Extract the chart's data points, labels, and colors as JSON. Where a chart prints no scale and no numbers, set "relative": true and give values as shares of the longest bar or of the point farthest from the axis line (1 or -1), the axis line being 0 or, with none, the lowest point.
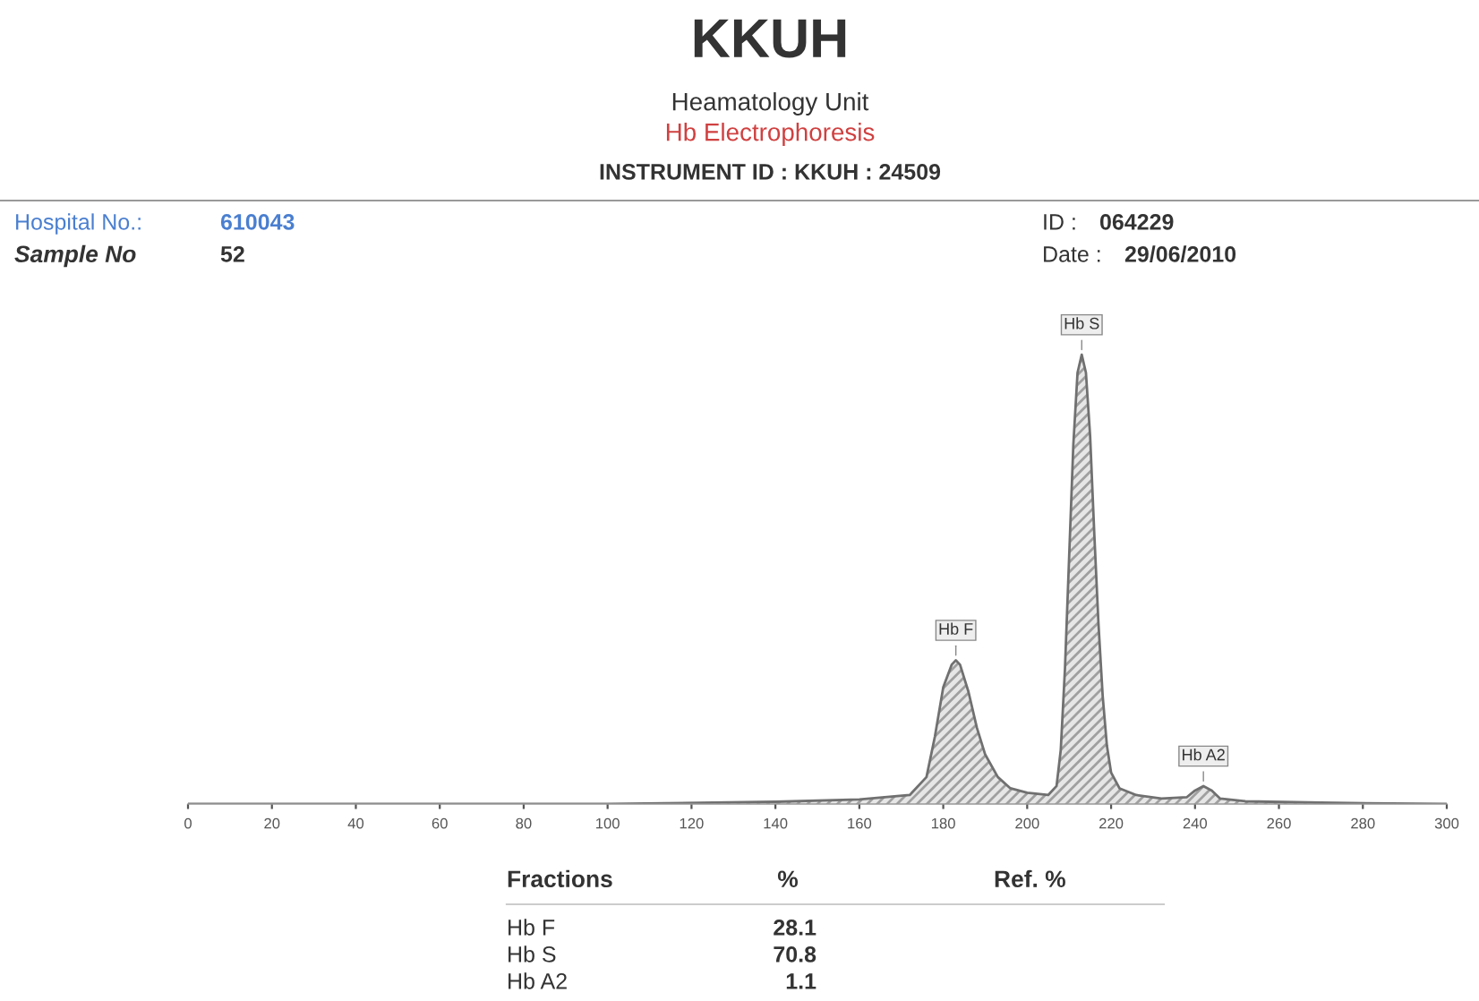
{
  "chart_data": {
    "type": "area",
    "relative": true,
    "title": "KKUH",
    "subtitle": "Heamatology Unit",
    "x": [
      0,
      100,
      140,
      160,
      172,
      176,
      178,
      180,
      182,
      183,
      184,
      186,
      188,
      190,
      193,
      196,
      200,
      205,
      207,
      208,
      209,
      210,
      211,
      212,
      213,
      214,
      215,
      216,
      217,
      218,
      219,
      220,
      222,
      226,
      232,
      238,
      240,
      242,
      244,
      246,
      252,
      270,
      300
    ],
    "series": [
      {
        "color": "#707070",
        "values": [
          0,
          0,
          0.005,
          0.01,
          0.02,
          0.06,
          0.15,
          0.26,
          0.31,
          0.32,
          0.31,
          0.25,
          0.17,
          0.11,
          0.06,
          0.035,
          0.025,
          0.02,
          0.04,
          0.12,
          0.3,
          0.55,
          0.8,
          0.96,
          1,
          0.96,
          0.82,
          0.6,
          0.4,
          0.24,
          0.13,
          0.07,
          0.035,
          0.02,
          0.012,
          0.015,
          0.03,
          0.04,
          0.03,
          0.012,
          0.006,
          0.003,
          0
        ]
      }
    ],
    "xlim": [
      0,
      300
    ],
    "xticks": [
      0,
      20,
      40,
      60,
      80,
      100,
      120,
      140,
      160,
      180,
      200,
      220,
      240,
      260,
      280,
      300
    ],
    "grid": false,
    "legend": false,
    "annotations": [
      {
        "text": "Hb F",
        "x": 183,
        "y": 0.32
      },
      {
        "text": "Hb S",
        "x": 213,
        "y": 1
      },
      {
        "text": "Hb A2",
        "x": 242,
        "y": 0.04
      },
      "Hb Electrophoresis",
      "INSTRUMENT ID : KKUH : 24509",
      "Hospital No.:",
      "610043",
      "Sample No",
      "52",
      "ID :",
      "064229",
      "Date :",
      "29/06/2010",
      "Fractions",
      "%",
      "Ref. %",
      "Hb F",
      "28.1",
      "Hb S",
      "70.8",
      "Hb A2",
      "1.1"
    ]
  }
}
